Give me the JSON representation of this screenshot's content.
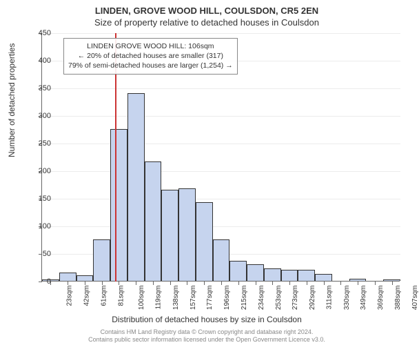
{
  "title": "LINDEN, GROVE WOOD HILL, COULSDON, CR5 2EN",
  "subtitle": "Size of property relative to detached houses in Coulsdon",
  "y_axis_title": "Number of detached properties",
  "x_axis_title": "Distribution of detached houses by size in Coulsdon",
  "chart": {
    "type": "histogram",
    "y_max": 450,
    "y_tick_step": 50,
    "x_labels": [
      "23sqm",
      "42sqm",
      "61sqm",
      "81sqm",
      "100sqm",
      "119sqm",
      "138sqm",
      "157sqm",
      "177sqm",
      "196sqm",
      "215sqm",
      "234sqm",
      "253sqm",
      "273sqm",
      "292sqm",
      "311sqm",
      "330sqm",
      "349sqm",
      "369sqm",
      "388sqm",
      "407sqm"
    ],
    "values": [
      2,
      15,
      10,
      75,
      275,
      340,
      216,
      165,
      167,
      143,
      75,
      36,
      30,
      22,
      20,
      20,
      12,
      0,
      4,
      0,
      2
    ],
    "bar_fill": "#c6d4ee",
    "bar_stroke": "#333333",
    "background": "#ffffff",
    "grid_color": "#666666",
    "marker_position": 4.3,
    "marker_color": "#cc3333"
  },
  "annotation": {
    "line1": "LINDEN GROVE WOOD HILL: 106sqm",
    "line2": "← 20% of detached houses are smaller (317)",
    "line3": "79% of semi-detached houses are larger (1,254) →"
  },
  "footer": {
    "line1": "Contains HM Land Registry data © Crown copyright and database right 2024.",
    "line2": "Contains public sector information licensed under the Open Government Licence v3.0."
  }
}
